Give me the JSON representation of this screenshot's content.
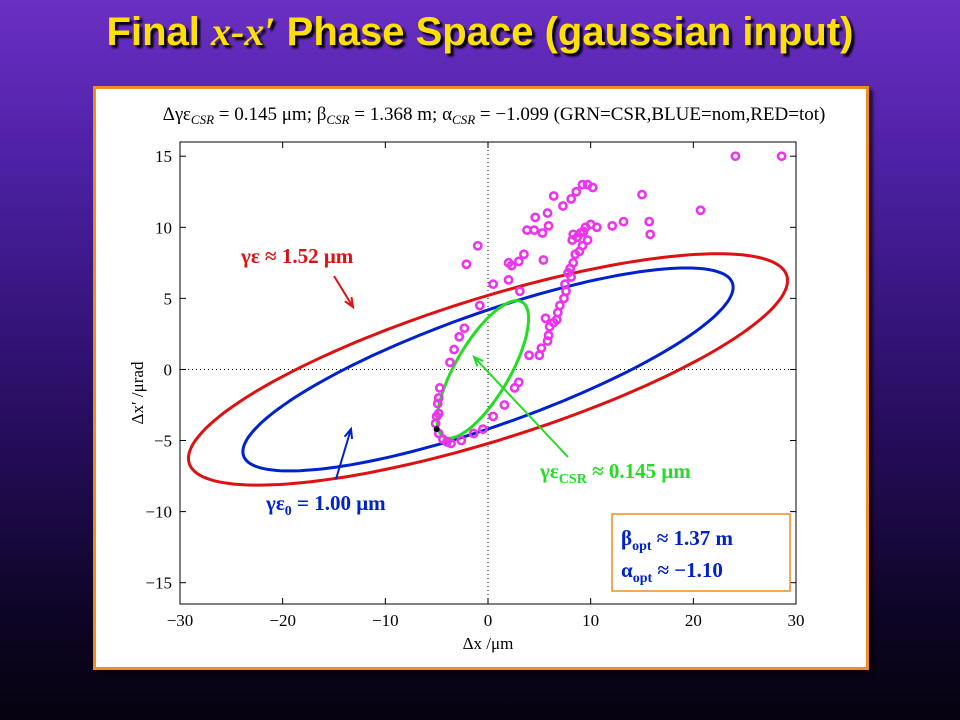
{
  "slide": {
    "title_prefix": "Final ",
    "title_var": "x-x′",
    "title_suffix": " Phase Space (gaussian input)"
  },
  "colors": {
    "title": "#ffe000",
    "panel_border": "#f28c1c",
    "csr": "#22dd22",
    "nominal": "#0022cc",
    "total": "#dd1111",
    "particles": "#ee33ee"
  },
  "chart_data": {
    "type": "scatter",
    "title": "Δγε_CSR = 0.145 μm; β_CSR = 1.368 m; α_CSR = −1.099 (GRN=CSR,BLUE=nom,RED=tot)",
    "xlabel": "Δx /μm",
    "ylabel": "Δx′ /μrad",
    "xlim": [
      -30,
      30
    ],
    "ylim": [
      -16.5,
      16
    ],
    "xticks": [
      -30,
      -20,
      -10,
      0,
      10,
      20,
      30
    ],
    "yticks": [
      -15,
      -10,
      -5,
      0,
      5,
      10,
      15
    ],
    "xtick_labels": [
      "−30",
      "−20",
      "−10",
      "0",
      "10",
      "20",
      "30"
    ],
    "ytick_labels": [
      "−15",
      "−10",
      "−5",
      "0",
      "5",
      "10",
      "15"
    ],
    "grid": false,
    "zero_lines": true,
    "ellipses": [
      {
        "name": "tot",
        "color": "#dd1111",
        "center": [
          0,
          0
        ],
        "emittance": 1.52,
        "beta": 5.6,
        "alpha": -1.2
      },
      {
        "name": "nom",
        "color": "#0022cc",
        "center": [
          0,
          0
        ],
        "emittance": 1.0,
        "beta": 5.7,
        "alpha": -1.38
      },
      {
        "name": "CSR",
        "color": "#22dd22",
        "center": [
          -0.5,
          0
        ],
        "emittance": 0.145,
        "beta": 1.368,
        "alpha": -1.099
      }
    ],
    "particles": [
      [
        24.1,
        15.0
      ],
      [
        28.6,
        15.0
      ],
      [
        20.7,
        11.2
      ],
      [
        15.0,
        12.3
      ],
      [
        15.7,
        10.4
      ],
      [
        15.8,
        9.5
      ],
      [
        13.2,
        10.4
      ],
      [
        12.1,
        10.1
      ],
      [
        10.6,
        10.0
      ],
      [
        10.2,
        12.8
      ],
      [
        9.7,
        13.0
      ],
      [
        9.2,
        13.0
      ],
      [
        8.6,
        12.5
      ],
      [
        8.1,
        12.0
      ],
      [
        7.3,
        11.5
      ],
      [
        6.4,
        12.2
      ],
      [
        5.8,
        11.0
      ],
      [
        5.9,
        10.1
      ],
      [
        4.6,
        10.7
      ],
      [
        4.5,
        9.8
      ],
      [
        3.8,
        9.8
      ],
      [
        5.3,
        9.6
      ],
      [
        10.0,
        10.2
      ],
      [
        9.5,
        10.0
      ],
      [
        9.3,
        9.7
      ],
      [
        9.0,
        9.6
      ],
      [
        8.7,
        9.3
      ],
      [
        8.3,
        9.5
      ],
      [
        8.2,
        9.1
      ],
      [
        9.7,
        9.1
      ],
      [
        9.2,
        8.7
      ],
      [
        8.9,
        8.3
      ],
      [
        8.5,
        8.1
      ],
      [
        8.3,
        7.5
      ],
      [
        8.0,
        7.1
      ],
      [
        8.1,
        6.5
      ],
      [
        7.8,
        6.8
      ],
      [
        7.5,
        6.0
      ],
      [
        7.6,
        5.5
      ],
      [
        7.4,
        5.0
      ],
      [
        7.0,
        4.5
      ],
      [
        6.8,
        4.0
      ],
      [
        6.7,
        3.5
      ],
      [
        6.4,
        3.3
      ],
      [
        6.0,
        3.0
      ],
      [
        5.9,
        2.4
      ],
      [
        5.8,
        2.0
      ],
      [
        5.2,
        1.5
      ],
      [
        5.0,
        1.0
      ],
      [
        5.4,
        7.7
      ],
      [
        3.5,
        8.1
      ],
      [
        3.0,
        7.6
      ],
      [
        2.3,
        7.3
      ],
      [
        3.1,
        5.5
      ],
      [
        5.6,
        3.6
      ],
      [
        2.0,
        7.5
      ],
      [
        -1.0,
        8.7
      ],
      [
        -2.1,
        7.4
      ],
      [
        2.0,
        6.3
      ],
      [
        0.5,
        6.0
      ],
      [
        -0.8,
        4.5
      ],
      [
        -2.3,
        2.9
      ],
      [
        -2.8,
        2.3
      ],
      [
        -3.3,
        1.4
      ],
      [
        -3.7,
        0.5
      ],
      [
        -4.7,
        -1.3
      ],
      [
        -4.8,
        -2.0
      ],
      [
        -4.9,
        -2.4
      ],
      [
        -4.8,
        -3.1
      ],
      [
        -5.0,
        -3.3
      ],
      [
        -5.1,
        -3.8
      ],
      [
        -4.8,
        -4.5
      ],
      [
        -4.4,
        -4.9
      ],
      [
        -4.0,
        -5.1
      ],
      [
        -3.6,
        -5.2
      ],
      [
        -2.6,
        -5.0
      ],
      [
        -1.4,
        -4.5
      ],
      [
        -0.5,
        -4.2
      ],
      [
        0.5,
        -3.3
      ],
      [
        1.6,
        -2.5
      ],
      [
        2.6,
        -1.3
      ],
      [
        3.0,
        -0.9
      ],
      [
        4.0,
        1.0
      ]
    ],
    "marker": [
      -5.0,
      -4.2
    ],
    "annotations": {
      "total": "γε ≈ 1.52 μm",
      "nominal": "γε0 = 1.00 μm",
      "csr": "γεCSR ≈ 0.145 μm",
      "beta_opt": "βopt ≈ 1.37 m",
      "alpha_opt": "αopt ≈ −1.10"
    }
  }
}
